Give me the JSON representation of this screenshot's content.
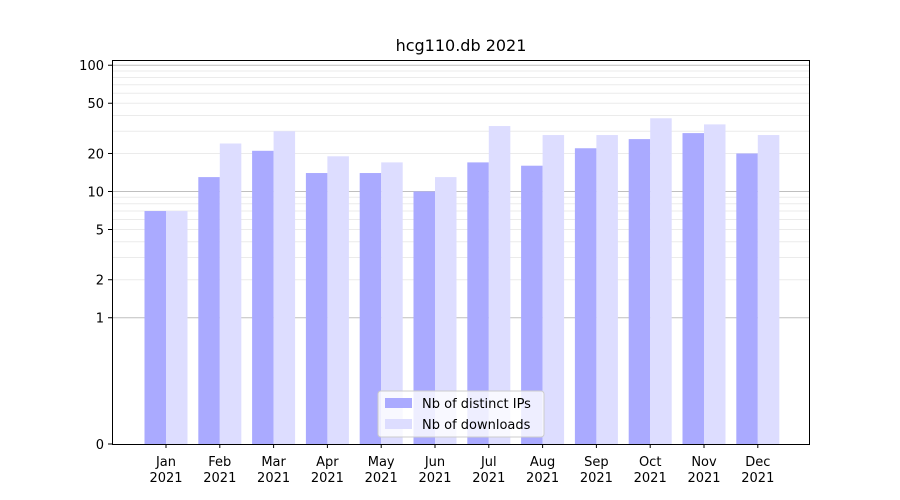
{
  "chart_data": {
    "type": "bar",
    "title": "hcg110.db 2021",
    "xlabel": "",
    "ylabel": "",
    "y_scale": "symlog",
    "ylim": [
      0,
      110
    ],
    "y_ticks": [
      0,
      1,
      2,
      5,
      10,
      20,
      50,
      100
    ],
    "grid": "horizontal",
    "legend_position": "bottom-center",
    "categories": [
      {
        "month": "Jan",
        "year": "2021"
      },
      {
        "month": "Feb",
        "year": "2021"
      },
      {
        "month": "Mar",
        "year": "2021"
      },
      {
        "month": "Apr",
        "year": "2021"
      },
      {
        "month": "May",
        "year": "2021"
      },
      {
        "month": "Jun",
        "year": "2021"
      },
      {
        "month": "Jul",
        "year": "2021"
      },
      {
        "month": "Aug",
        "year": "2021"
      },
      {
        "month": "Sep",
        "year": "2021"
      },
      {
        "month": "Oct",
        "year": "2021"
      },
      {
        "month": "Nov",
        "year": "2021"
      },
      {
        "month": "Dec",
        "year": "2021"
      }
    ],
    "series": [
      {
        "name": "Nb of distinct IPs",
        "color": "#aaaaff",
        "values": [
          7,
          13,
          21,
          14,
          14,
          10,
          17,
          16,
          22,
          26,
          29,
          20
        ]
      },
      {
        "name": "Nb of downloads",
        "color": "#ddddff",
        "values": [
          7,
          24,
          30,
          19,
          17,
          13,
          33,
          28,
          28,
          38,
          34,
          28
        ]
      }
    ]
  }
}
